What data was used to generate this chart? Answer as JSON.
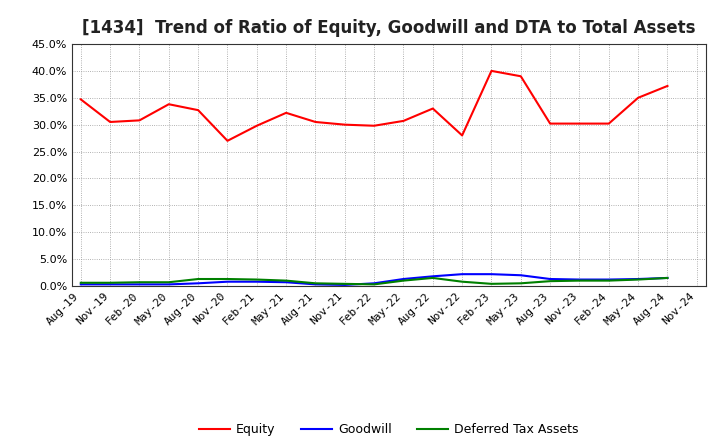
{
  "title": "[1434]  Trend of Ratio of Equity, Goodwill and DTA to Total Assets",
  "x_labels": [
    "Aug-19",
    "Nov-19",
    "Feb-20",
    "May-20",
    "Aug-20",
    "Nov-20",
    "Feb-21",
    "May-21",
    "Aug-21",
    "Nov-21",
    "Feb-22",
    "May-22",
    "Aug-22",
    "Nov-22",
    "Feb-23",
    "May-23",
    "Aug-23",
    "Nov-23",
    "Feb-24",
    "May-24",
    "Aug-24",
    "Nov-24"
  ],
  "equity": [
    0.347,
    0.305,
    0.308,
    0.338,
    0.327,
    0.27,
    0.298,
    0.322,
    0.305,
    0.3,
    0.298,
    0.307,
    0.33,
    0.28,
    0.4,
    0.39,
    0.302,
    0.302,
    0.302,
    0.35,
    0.372,
    null
  ],
  "goodwill": [
    0.003,
    0.003,
    0.003,
    0.003,
    0.005,
    0.008,
    0.008,
    0.007,
    0.003,
    0.002,
    0.005,
    0.013,
    0.018,
    0.022,
    0.022,
    0.02,
    0.013,
    0.012,
    0.012,
    0.013,
    0.015,
    null
  ],
  "dta": [
    0.006,
    0.006,
    0.007,
    0.007,
    0.013,
    0.013,
    0.012,
    0.01,
    0.005,
    0.004,
    0.003,
    0.01,
    0.015,
    0.008,
    0.004,
    0.005,
    0.009,
    0.01,
    0.01,
    0.012,
    0.015,
    null
  ],
  "equity_color": "#FF0000",
  "goodwill_color": "#0000FF",
  "dta_color": "#008000",
  "ylim": [
    0.0,
    0.45
  ],
  "yticks": [
    0.0,
    0.05,
    0.1,
    0.15,
    0.2,
    0.25,
    0.3,
    0.35,
    0.4,
    0.45
  ],
  "background_color": "#FFFFFF",
  "plot_bg_color": "#FFFFFF",
  "grid_color": "#999999",
  "legend_labels": [
    "Equity",
    "Goodwill",
    "Deferred Tax Assets"
  ],
  "title_fontsize": 12,
  "tick_fontsize": 8,
  "legend_fontsize": 9,
  "line_width": 1.5
}
